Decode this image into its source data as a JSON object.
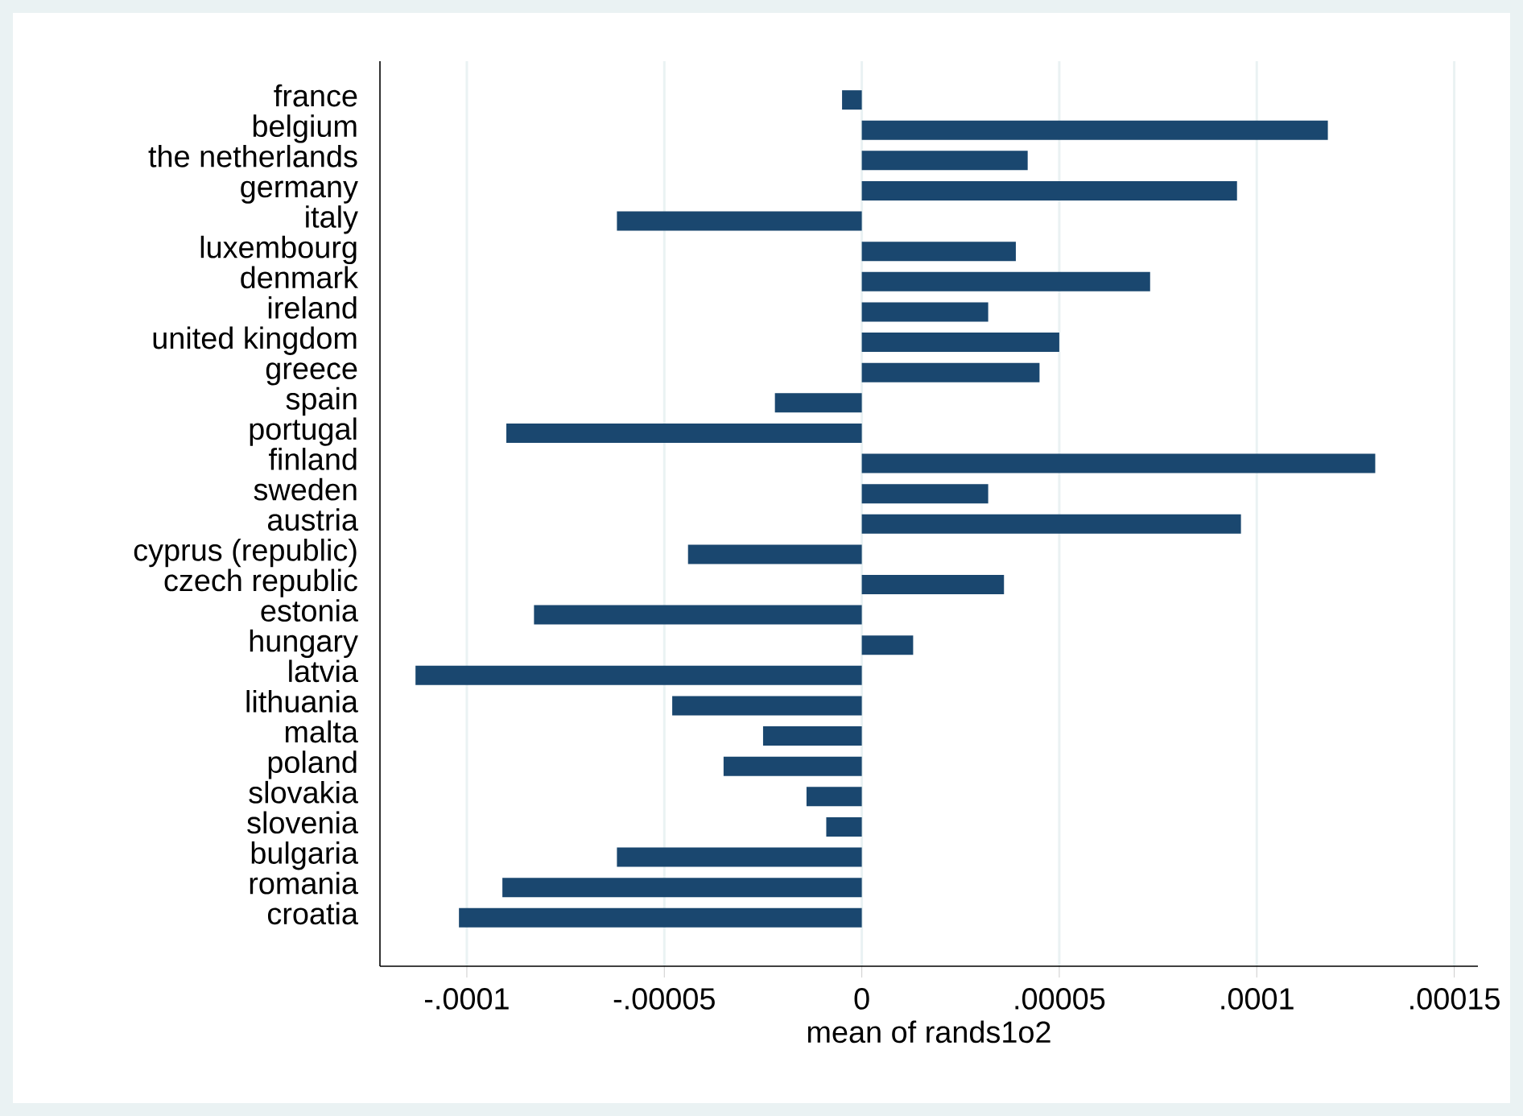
{
  "chart_data": {
    "type": "bar",
    "orientation": "horizontal",
    "xlabel": "mean of rands1o2",
    "categories": [
      "france",
      "belgium",
      "the netherlands",
      "germany",
      "italy",
      "luxembourg",
      "denmark",
      "ireland",
      "united kingdom",
      "greece",
      "spain",
      "portugal",
      "finland",
      "sweden",
      "austria",
      "cyprus (republic)",
      "czech republic",
      "estonia",
      "hungary",
      "latvia",
      "lithuania",
      "malta",
      "poland",
      "slovakia",
      "slovenia",
      "bulgaria",
      "romania",
      "croatia"
    ],
    "values": [
      -5e-06,
      0.000118,
      4.2e-05,
      9.5e-05,
      -6.2e-05,
      3.9e-05,
      7.3e-05,
      3.2e-05,
      5e-05,
      4.5e-05,
      -2.2e-05,
      -9e-05,
      0.00013,
      3.2e-05,
      9.6e-05,
      -4.4e-05,
      3.6e-05,
      -8.3e-05,
      1.3e-05,
      -0.000113,
      -4.8e-05,
      -2.5e-05,
      -3.5e-05,
      -1.4e-05,
      -9e-06,
      -6.2e-05,
      -9.1e-05,
      -0.000102
    ],
    "color": "#1a476f",
    "xlim": [
      -0.000122,
      0.000156
    ],
    "xticks": [
      {
        "value": -0.0001,
        "label": "-.0001"
      },
      {
        "value": -5e-05,
        "label": "-.00005"
      },
      {
        "value": 0,
        "label": "0"
      },
      {
        "value": 5e-05,
        "label": ".00005"
      },
      {
        "value": 0.0001,
        "label": ".0001"
      },
      {
        "value": 0.00015,
        "label": ".00015"
      }
    ],
    "grid": "x"
  }
}
